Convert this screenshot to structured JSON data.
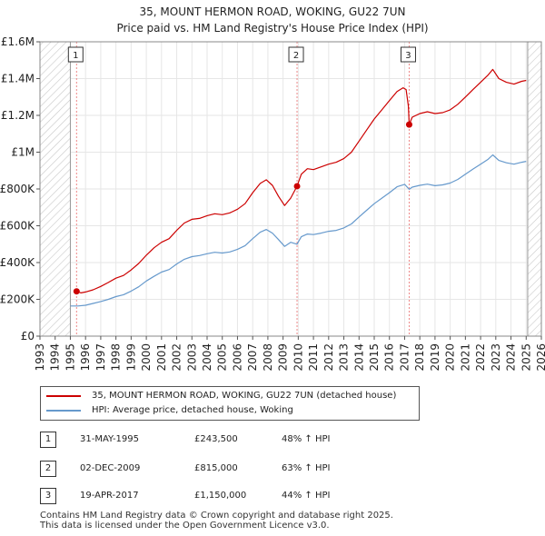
{
  "title_line1": "35, MOUNT HERMON ROAD, WOKING, GU22 7UN",
  "title_line2": "Price paid vs. HM Land Registry's House Price Index (HPI)",
  "chart_data": {
    "type": "line",
    "title": "35, MOUNT HERMON ROAD, WOKING, GU22 7UN — Price paid vs. HM Land Registry's House Price Index (HPI)",
    "xlim": [
      1993,
      2026
    ],
    "ylim": [
      0,
      1600000
    ],
    "x_ticks": [
      1993,
      1994,
      1995,
      1996,
      1997,
      1998,
      1999,
      2000,
      2001,
      2002,
      2003,
      2004,
      2005,
      2006,
      2007,
      2008,
      2009,
      2010,
      2011,
      2012,
      2013,
      2014,
      2015,
      2016,
      2017,
      2018,
      2019,
      2020,
      2021,
      2022,
      2023,
      2024,
      2025,
      2026
    ],
    "y_ticks": [
      {
        "value": 0,
        "label": "£0"
      },
      {
        "value": 200000,
        "label": "£200K"
      },
      {
        "value": 400000,
        "label": "£400K"
      },
      {
        "value": 600000,
        "label": "£600K"
      },
      {
        "value": 800000,
        "label": "£800K"
      },
      {
        "value": 1000000,
        "label": "£1M"
      },
      {
        "value": 1200000,
        "label": "£1.2M"
      },
      {
        "value": 1400000,
        "label": "£1.4M"
      },
      {
        "value": 1600000,
        "label": "£1.6M"
      }
    ],
    "hatch_ranges": [
      [
        1993,
        1995.0
      ],
      [
        2025.1,
        2026
      ]
    ],
    "series": [
      {
        "name": "35, MOUNT HERMON ROAD, WOKING, GU22 7UN (detached house)",
        "color": "#cc0000",
        "points": [
          [
            1995.41,
            243500
          ],
          [
            1995.7,
            235000
          ],
          [
            1996.0,
            240000
          ],
          [
            1996.5,
            252000
          ],
          [
            1997.0,
            270000
          ],
          [
            1997.5,
            292000
          ],
          [
            1998.0,
            315000
          ],
          [
            1998.5,
            330000
          ],
          [
            1999.0,
            360000
          ],
          [
            1999.5,
            395000
          ],
          [
            2000.0,
            440000
          ],
          [
            2000.5,
            480000
          ],
          [
            2001.0,
            510000
          ],
          [
            2001.5,
            530000
          ],
          [
            2002.0,
            575000
          ],
          [
            2002.5,
            615000
          ],
          [
            2003.0,
            635000
          ],
          [
            2003.5,
            640000
          ],
          [
            2004.0,
            655000
          ],
          [
            2004.5,
            665000
          ],
          [
            2005.0,
            660000
          ],
          [
            2005.5,
            670000
          ],
          [
            2006.0,
            690000
          ],
          [
            2006.5,
            720000
          ],
          [
            2007.0,
            780000
          ],
          [
            2007.5,
            830000
          ],
          [
            2007.9,
            850000
          ],
          [
            2008.3,
            820000
          ],
          [
            2008.7,
            760000
          ],
          [
            2009.1,
            710000
          ],
          [
            2009.5,
            750000
          ],
          [
            2009.92,
            815000
          ],
          [
            2010.2,
            880000
          ],
          [
            2010.6,
            910000
          ],
          [
            2011.0,
            905000
          ],
          [
            2011.5,
            920000
          ],
          [
            2012.0,
            935000
          ],
          [
            2012.5,
            945000
          ],
          [
            2013.0,
            965000
          ],
          [
            2013.5,
            1000000
          ],
          [
            2014.0,
            1060000
          ],
          [
            2014.5,
            1120000
          ],
          [
            2015.0,
            1180000
          ],
          [
            2015.5,
            1230000
          ],
          [
            2016.0,
            1280000
          ],
          [
            2016.5,
            1330000
          ],
          [
            2016.9,
            1350000
          ],
          [
            2017.1,
            1340000
          ],
          [
            2017.25,
            1250000
          ],
          [
            2017.3,
            1150000
          ],
          [
            2017.5,
            1190000
          ],
          [
            2018.0,
            1210000
          ],
          [
            2018.5,
            1220000
          ],
          [
            2019.0,
            1210000
          ],
          [
            2019.5,
            1215000
          ],
          [
            2020.0,
            1230000
          ],
          [
            2020.5,
            1260000
          ],
          [
            2021.0,
            1300000
          ],
          [
            2021.5,
            1340000
          ],
          [
            2022.0,
            1380000
          ],
          [
            2022.5,
            1420000
          ],
          [
            2022.8,
            1450000
          ],
          [
            2023.2,
            1400000
          ],
          [
            2023.7,
            1380000
          ],
          [
            2024.2,
            1370000
          ],
          [
            2024.7,
            1385000
          ],
          [
            2025.0,
            1390000
          ]
        ]
      },
      {
        "name": "HPI: Average price, detached house, Woking",
        "color": "#6699cc",
        "points": [
          [
            1995.0,
            164000
          ],
          [
            1995.5,
            164000
          ],
          [
            1996.0,
            168000
          ],
          [
            1996.5,
            178000
          ],
          [
            1997.0,
            188000
          ],
          [
            1997.5,
            200000
          ],
          [
            1998.0,
            215000
          ],
          [
            1998.5,
            225000
          ],
          [
            1999.0,
            245000
          ],
          [
            1999.5,
            268000
          ],
          [
            2000.0,
            300000
          ],
          [
            2000.5,
            325000
          ],
          [
            2001.0,
            348000
          ],
          [
            2001.5,
            362000
          ],
          [
            2002.0,
            392000
          ],
          [
            2002.5,
            418000
          ],
          [
            2003.0,
            432000
          ],
          [
            2003.5,
            438000
          ],
          [
            2004.0,
            448000
          ],
          [
            2004.5,
            456000
          ],
          [
            2005.0,
            452000
          ],
          [
            2005.5,
            458000
          ],
          [
            2006.0,
            472000
          ],
          [
            2006.5,
            492000
          ],
          [
            2007.0,
            530000
          ],
          [
            2007.5,
            565000
          ],
          [
            2007.9,
            580000
          ],
          [
            2008.3,
            560000
          ],
          [
            2008.7,
            525000
          ],
          [
            2009.1,
            488000
          ],
          [
            2009.5,
            510000
          ],
          [
            2009.92,
            500000
          ],
          [
            2010.2,
            540000
          ],
          [
            2010.6,
            555000
          ],
          [
            2011.0,
            552000
          ],
          [
            2011.5,
            560000
          ],
          [
            2012.0,
            570000
          ],
          [
            2012.5,
            575000
          ],
          [
            2013.0,
            588000
          ],
          [
            2013.5,
            610000
          ],
          [
            2014.0,
            648000
          ],
          [
            2014.5,
            684000
          ],
          [
            2015.0,
            720000
          ],
          [
            2015.5,
            750000
          ],
          [
            2016.0,
            780000
          ],
          [
            2016.5,
            812000
          ],
          [
            2017.0,
            825000
          ],
          [
            2017.3,
            798000
          ],
          [
            2017.5,
            810000
          ],
          [
            2018.0,
            820000
          ],
          [
            2018.5,
            826000
          ],
          [
            2019.0,
            818000
          ],
          [
            2019.5,
            822000
          ],
          [
            2020.0,
            832000
          ],
          [
            2020.5,
            852000
          ],
          [
            2021.0,
            880000
          ],
          [
            2021.5,
            908000
          ],
          [
            2022.0,
            935000
          ],
          [
            2022.5,
            962000
          ],
          [
            2022.8,
            985000
          ],
          [
            2023.2,
            955000
          ],
          [
            2023.7,
            942000
          ],
          [
            2024.2,
            935000
          ],
          [
            2024.7,
            945000
          ],
          [
            2025.0,
            950000
          ]
        ]
      }
    ],
    "sales": [
      {
        "num": "1",
        "x": 1995.41,
        "y": 243500
      },
      {
        "num": "2",
        "x": 2009.92,
        "y": 815000
      },
      {
        "num": "3",
        "x": 2017.3,
        "y": 1150000
      }
    ]
  },
  "legend": {
    "property": "35, MOUNT HERMON ROAD, WOKING, GU22 7UN (detached house)",
    "hpi": "HPI: Average price, detached house, Woking"
  },
  "sales_table": [
    {
      "num": "1",
      "date": "31-MAY-1995",
      "price": "£243,500",
      "hpi": "48% ↑ HPI"
    },
    {
      "num": "2",
      "date": "02-DEC-2009",
      "price": "£815,000",
      "hpi": "63% ↑ HPI"
    },
    {
      "num": "3",
      "date": "19-APR-2017",
      "price": "£1,150,000",
      "hpi": "44% ↑ HPI"
    }
  ],
  "footer_line1": "Contains HM Land Registry data © Crown copyright and database right 2025.",
  "footer_line2": "This data is licensed under the Open Government Licence v3.0."
}
